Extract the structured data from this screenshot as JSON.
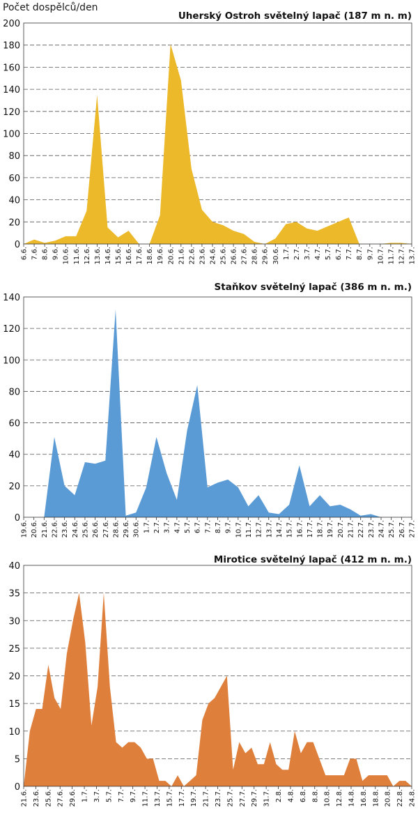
{
  "ylabel": "Počet dospělců/den",
  "chart_data": [
    {
      "type": "area",
      "title": "Uherský Ostroh světelný lapač (187 m n. m)",
      "color": "#EBB92A",
      "ylim": [
        0,
        200
      ],
      "yticks": [
        0,
        20,
        40,
        60,
        80,
        100,
        120,
        140,
        160,
        180,
        200
      ],
      "tick_labels": [
        "6.6.",
        "7.6.",
        "8.6.",
        "9.6.",
        "10.6.",
        "11.6.",
        "12.6.",
        "13.6.",
        "14.6.",
        "15.6.",
        "16.6.",
        "17.6.",
        "18.6.",
        "19.6.",
        "20.6.",
        "21.6.",
        "22.6.",
        "23.6.",
        "24.6.",
        "25.6.",
        "26.6.",
        "27.6.",
        "28.6.",
        "29.6.",
        "30.6.",
        "1.7.",
        "2.7.",
        "3.7.",
        "4.7.",
        "5.7.",
        "6.7.",
        "7.7.",
        "8.7.",
        "9.7.",
        "10.7.",
        "11.7.",
        "12.7.",
        "13.7."
      ],
      "values": [
        0,
        4,
        1,
        3,
        7,
        7,
        30,
        135,
        15,
        6,
        12,
        0,
        0,
        26,
        181,
        148,
        68,
        31,
        20,
        17,
        12,
        9,
        2,
        0,
        5,
        18,
        20,
        14,
        12,
        16,
        20,
        24,
        0,
        0,
        0,
        1,
        1,
        0
      ]
    },
    {
      "type": "area",
      "title": "Staňkov světelný lapač (386 m n. m.)",
      "color": "#5B9BD5",
      "ylim": [
        0,
        140
      ],
      "yticks": [
        0,
        20,
        40,
        60,
        80,
        100,
        120,
        140
      ],
      "tick_labels": [
        "19.6.",
        "20.6.",
        "21.6.",
        "22.6.",
        "23.6.",
        "24.6.",
        "25.6.",
        "26.6.",
        "27.6.",
        "28.6.",
        "29.6.",
        "30.6.",
        "1.7.",
        "2.7.",
        "3.7.",
        "4.7.",
        "5.7.",
        "6.7.",
        "7.7.",
        "8.7.",
        "9.7.",
        "10.7.",
        "11.7.",
        "12.7.",
        "13.7.",
        "14.7.",
        "15.7.",
        "16.7.",
        "17.7.",
        "18.7.",
        "19.7.",
        "20.7.",
        "21.7.",
        "22.7.",
        "23.7.",
        "24.7.",
        "25.7.",
        "26.7.",
        "27.7."
      ],
      "values": [
        0,
        0,
        0,
        51,
        20,
        14,
        35,
        34,
        36,
        132,
        1,
        3,
        19,
        51,
        28,
        11,
        55,
        84,
        19,
        22,
        24,
        19,
        7,
        14,
        3,
        2,
        8,
        33,
        7,
        14,
        7,
        8,
        5,
        1,
        2,
        0,
        0,
        0,
        0
      ]
    },
    {
      "type": "area",
      "title": "Mirotice světelný lapač (412 m n. m.)",
      "color": "#DE7F3C",
      "ylim": [
        0,
        40
      ],
      "yticks": [
        0,
        5,
        10,
        15,
        20,
        25,
        30,
        35,
        40
      ],
      "tick_labels": [
        "21.6.",
        "23.6.",
        "25.6.",
        "27.6.",
        "29.6.",
        "1.7.",
        "3.7.",
        "5.7.",
        "7.7.",
        "9.7.",
        "11.7.",
        "13.7.",
        "15.7.",
        "17.7.",
        "19.7.",
        "21.7.",
        "23.7.",
        "25.7.",
        "27.7.",
        "29.7.",
        "31.7.",
        "2.8.",
        "4.8.",
        "6.8.",
        "8.8.",
        "10.8.",
        "12.8.",
        "14.8.",
        "16.8.",
        "18.8.",
        "20.8.",
        "22.8.",
        "24.8."
      ],
      "values": [
        0,
        10,
        14,
        14,
        22,
        16,
        14,
        24,
        30,
        35,
        26,
        11,
        18,
        35,
        18,
        8,
        7,
        8,
        8,
        7,
        5,
        5,
        1,
        1,
        0,
        2,
        0,
        1,
        2,
        12,
        15,
        16,
        18,
        20,
        3,
        8,
        6,
        7,
        4,
        4,
        8,
        4,
        3,
        3,
        10,
        6,
        8,
        8,
        5,
        2,
        2,
        2,
        2,
        5,
        5,
        1,
        2,
        2,
        2,
        2,
        0,
        1,
        1,
        0
      ]
    }
  ]
}
